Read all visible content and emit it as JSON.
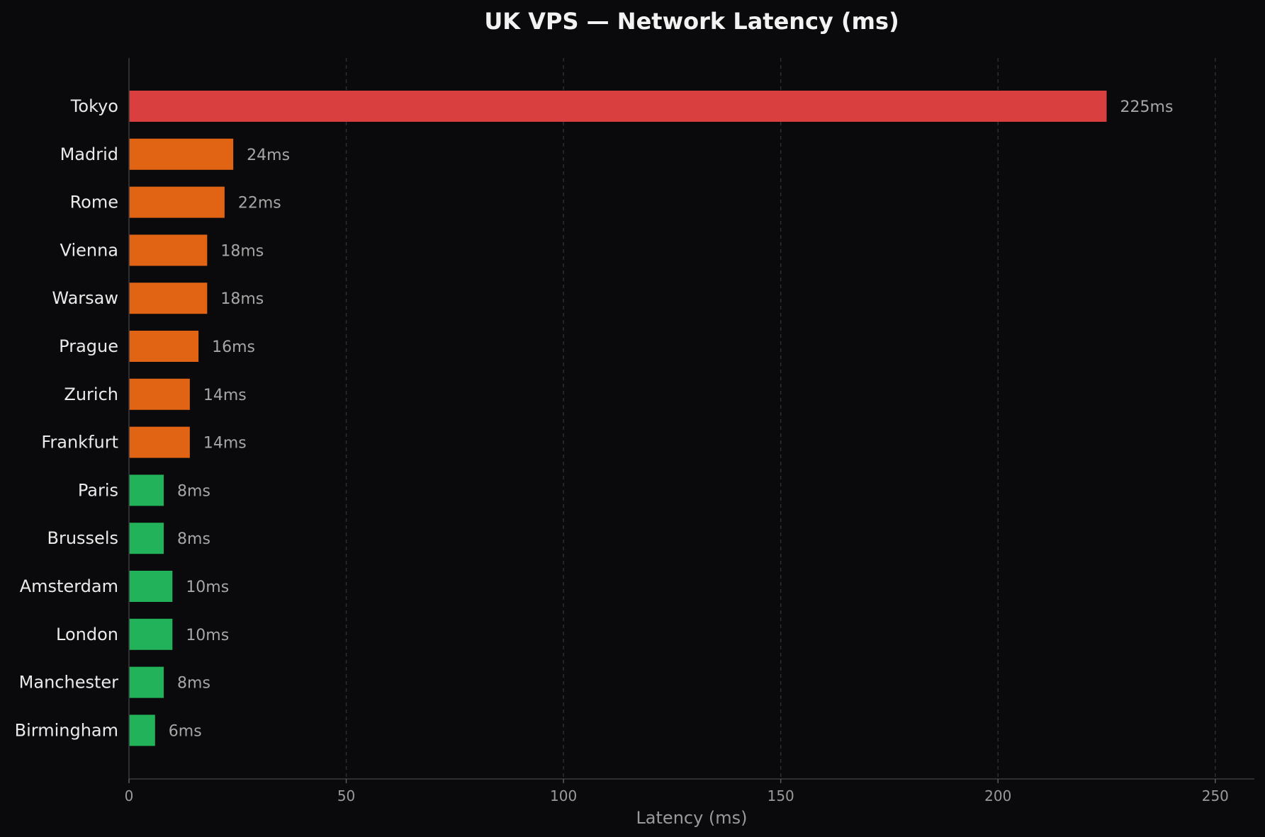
{
  "chart_data": {
    "type": "bar",
    "orientation": "horizontal",
    "title": "UK VPS — Network Latency (ms)",
    "xlabel": "Latency (ms)",
    "ylabel": "",
    "xlim": [
      0,
      259
    ],
    "xticks": [
      0,
      50,
      100,
      150,
      200,
      250
    ],
    "grid": true,
    "value_suffix": "ms",
    "categories": [
      "Tokyo",
      "Madrid",
      "Rome",
      "Vienna",
      "Warsaw",
      "Prague",
      "Zurich",
      "Frankfurt",
      "Paris",
      "Brussels",
      "Amsterdam",
      "London",
      "Manchester",
      "Birmingham"
    ],
    "values": [
      225,
      24,
      22,
      18,
      18,
      16,
      14,
      14,
      8,
      8,
      10,
      10,
      8,
      6
    ],
    "bar_colors": [
      "#d93f3f",
      "#e06414",
      "#e06414",
      "#e06414",
      "#e06414",
      "#e06414",
      "#e06414",
      "#e06414",
      "#22b35a",
      "#22b35a",
      "#22b35a",
      "#22b35a",
      "#22b35a",
      "#22b35a"
    ]
  },
  "colors": {
    "background": "#0a0a0c",
    "high": "#d93f3f",
    "medium": "#e06414",
    "low": "#22b35a"
  }
}
